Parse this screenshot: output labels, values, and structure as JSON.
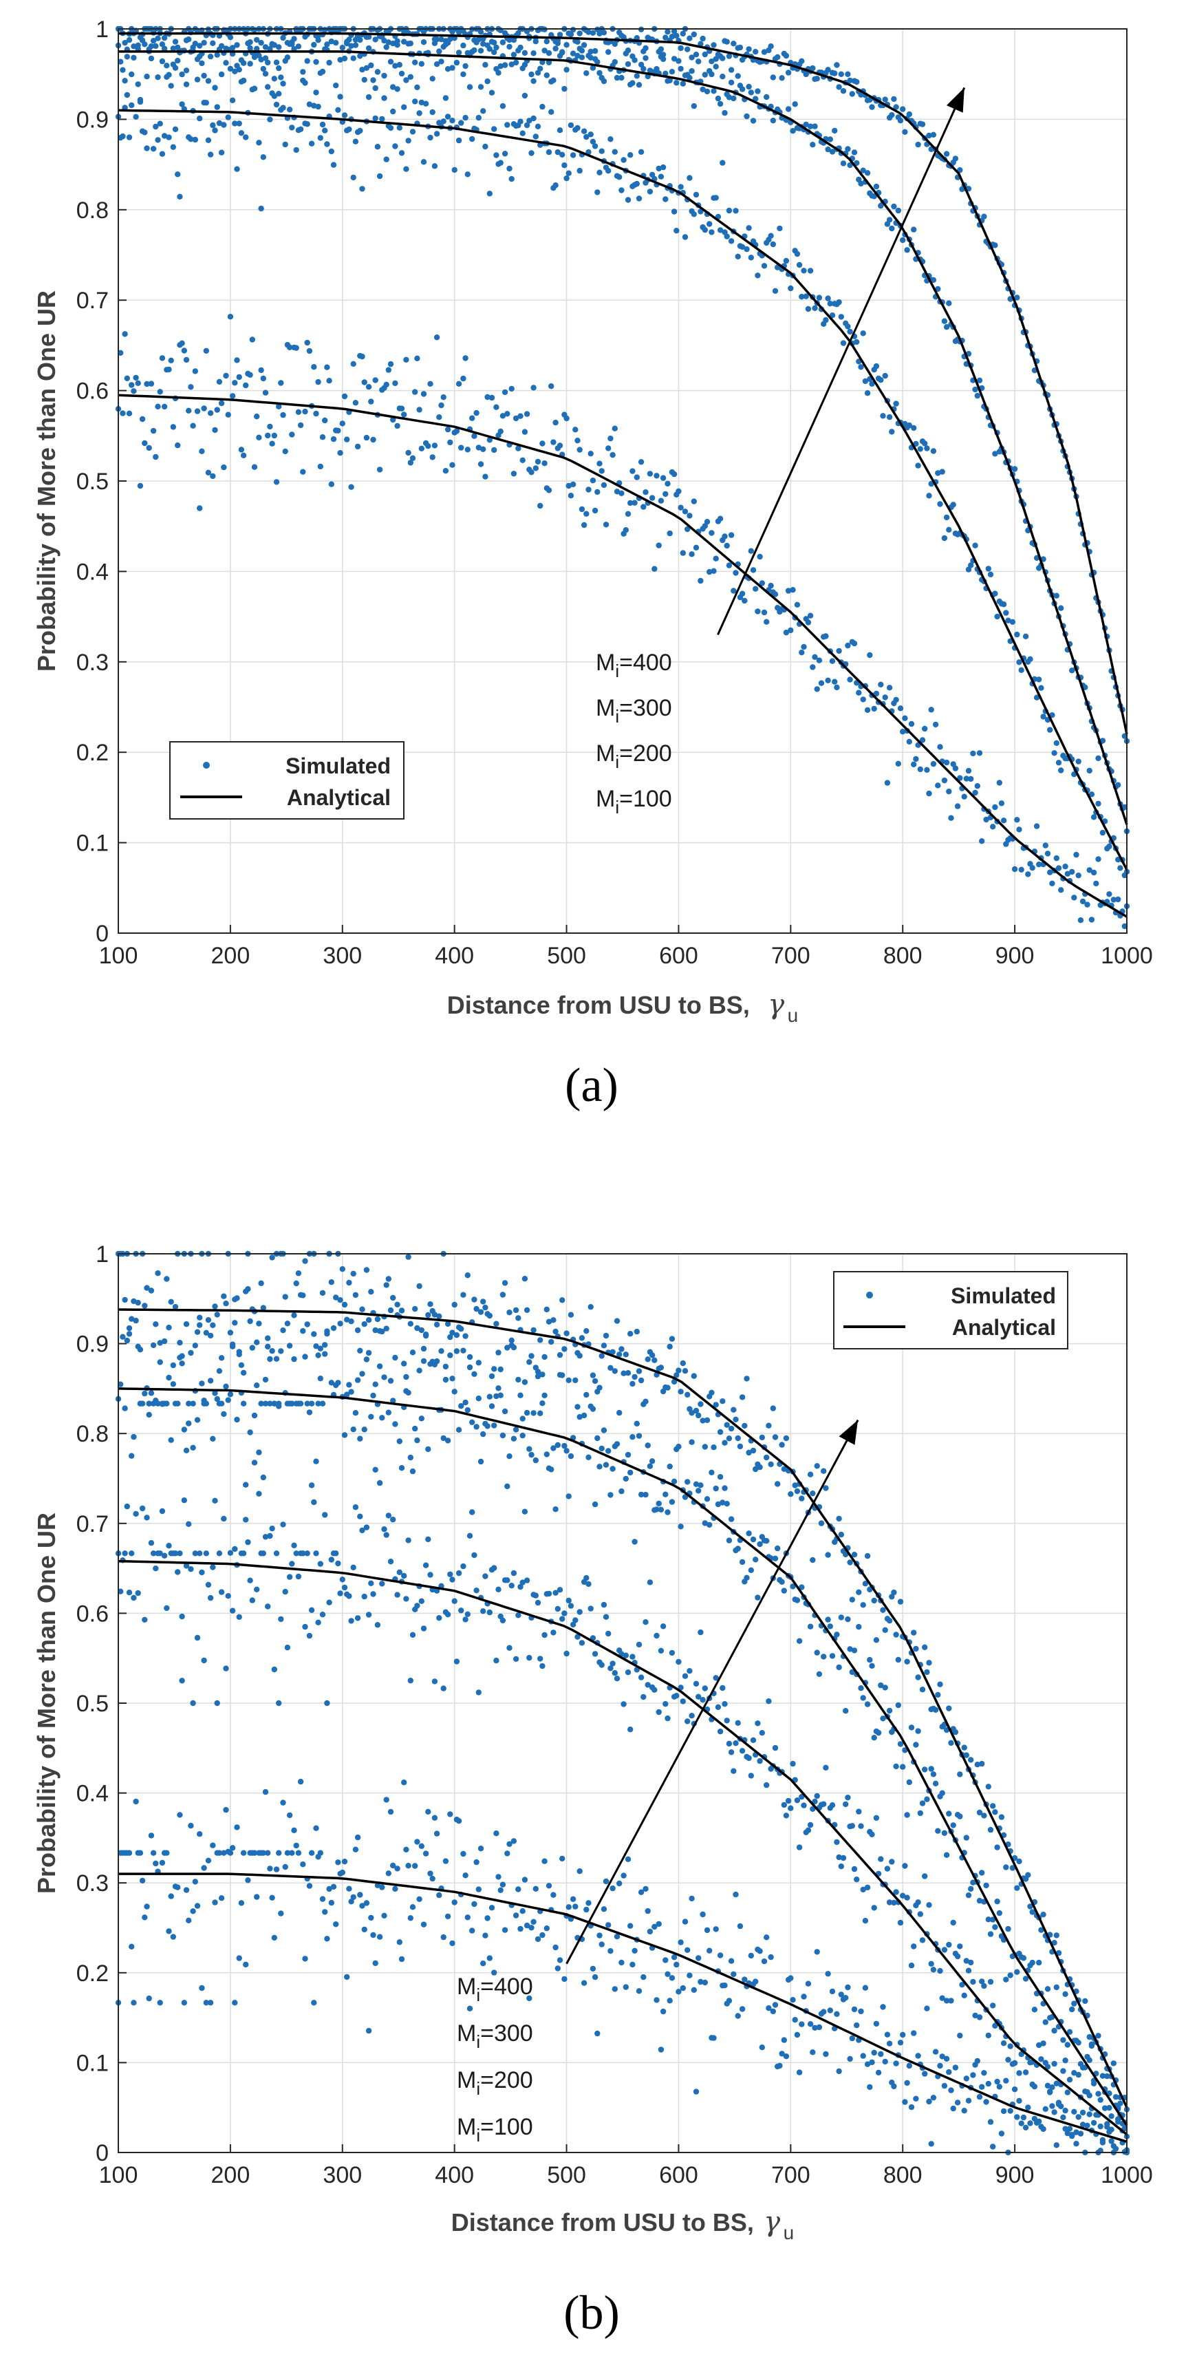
{
  "figure_captions": [
    "(a)",
    "(b)"
  ],
  "chart_data": [
    {
      "type": "scatter",
      "panel": "(a)",
      "xlabel": "Distance from USU to BS,",
      "xlabel_symbol": "γ",
      "xlabel_symbol_subscript": "u",
      "ylabel": "Probability of More than One UR",
      "xlim": [
        100,
        1000
      ],
      "ylim": [
        0,
        1
      ],
      "x_ticks": [
        "100",
        "200",
        "300",
        "400",
        "500",
        "600",
        "700",
        "800",
        "900",
        "1000"
      ],
      "y_ticks": [
        "0",
        "0.1",
        "0.2",
        "0.3",
        "0.4",
        "0.5",
        "0.6",
        "0.7",
        "0.8",
        "0.9",
        "1"
      ],
      "grid": true,
      "legend": {
        "position": "bottom-left",
        "entries": [
          "Simulated",
          "Analytical"
        ]
      },
      "annotation_labels": [
        "M",
        "M",
        "M",
        "M"
      ],
      "annotation_subscripts": [
        "i",
        "i",
        "i",
        "i"
      ],
      "annotation_values": [
        "=400",
        "=300",
        "=200",
        "=100"
      ],
      "arrow": {
        "from": [
          635,
          0.33
        ],
        "to": [
          855,
          0.935
        ]
      },
      "series": [
        {
          "name": "M_i=100",
          "analytical": {
            "x": [
              100,
              200,
              300,
              400,
              500,
              600,
              700,
              800,
              900,
              950,
              1000
            ],
            "y": [
              0.595,
              0.59,
              0.58,
              0.56,
              0.525,
              0.46,
              0.355,
              0.23,
              0.105,
              0.055,
              0.018
            ]
          },
          "sim_noise": 0.045
        },
        {
          "name": "M_i=200",
          "analytical": {
            "x": [
              100,
              200,
              300,
              400,
              500,
              600,
              700,
              750,
              800,
              850,
              900,
              950,
              1000
            ],
            "y": [
              0.91,
              0.908,
              0.9,
              0.89,
              0.87,
              0.82,
              0.73,
              0.66,
              0.56,
              0.45,
              0.32,
              0.19,
              0.07
            ]
          },
          "sim_noise": 0.03
        },
        {
          "name": "M_i=300",
          "analytical": {
            "x": [
              100,
              200,
              300,
              400,
              500,
              600,
              650,
              700,
              750,
              800,
              850,
              900,
              950,
              1000
            ],
            "y": [
              0.975,
              0.975,
              0.975,
              0.97,
              0.965,
              0.945,
              0.93,
              0.9,
              0.86,
              0.78,
              0.66,
              0.5,
              0.31,
              0.12
            ]
          },
          "sim_noise": 0.015
        },
        {
          "name": "M_i=400",
          "analytical": {
            "x": [
              100,
              300,
              500,
              600,
              700,
              750,
              800,
              850,
              900,
              950,
              1000
            ],
            "y": [
              0.995,
              0.995,
              0.99,
              0.985,
              0.96,
              0.94,
              0.905,
              0.84,
              0.7,
              0.51,
              0.22
            ]
          },
          "sim_noise": 0.008
        }
      ]
    },
    {
      "type": "scatter",
      "panel": "(b)",
      "xlabel": "Distance from USU to BS,",
      "xlabel_symbol": "γ",
      "xlabel_symbol_subscript": "u",
      "ylabel": "Probability of More than One UR",
      "xlim": [
        100,
        1000
      ],
      "ylim": [
        0,
        1
      ],
      "x_ticks": [
        "100",
        "200",
        "300",
        "400",
        "500",
        "600",
        "700",
        "800",
        "900",
        "1000"
      ],
      "y_ticks": [
        "0",
        "0.1",
        "0.2",
        "0.3",
        "0.4",
        "0.5",
        "0.6",
        "0.7",
        "0.8",
        "0.9",
        "1"
      ],
      "grid": true,
      "legend": {
        "position": "top-right",
        "entries": [
          "Simulated",
          "Analytical"
        ]
      },
      "annotation_labels": [
        "M",
        "M",
        "M",
        "M"
      ],
      "annotation_subscripts": [
        "i",
        "i",
        "i",
        "i"
      ],
      "annotation_values": [
        "=400",
        "=300",
        "=200",
        "=100"
      ],
      "arrow": {
        "from": [
          500,
          0.21
        ],
        "to": [
          760,
          0.815
        ]
      },
      "series": [
        {
          "name": "M_i=100",
          "analytical": {
            "x": [
              100,
              200,
              300,
              400,
              500,
              600,
              700,
              800,
              900,
              1000
            ],
            "y": [
              0.31,
              0.31,
              0.305,
              0.29,
              0.265,
              0.22,
              0.165,
              0.105,
              0.05,
              0.012
            ]
          },
          "sim_noise": 0.06
        },
        {
          "name": "M_i=200",
          "analytical": {
            "x": [
              100,
              200,
              300,
              400,
              500,
              600,
              700,
              800,
              900,
              1000
            ],
            "y": [
              0.658,
              0.655,
              0.645,
              0.625,
              0.585,
              0.515,
              0.415,
              0.275,
              0.12,
              0.02
            ]
          },
          "sim_noise": 0.05
        },
        {
          "name": "M_i=300",
          "analytical": {
            "x": [
              100,
              200,
              300,
              400,
              500,
              600,
              700,
              800,
              900,
              1000
            ],
            "y": [
              0.85,
              0.848,
              0.84,
              0.825,
              0.795,
              0.74,
              0.64,
              0.46,
              0.22,
              0.03
            ]
          },
          "sim_noise": 0.045
        },
        {
          "name": "M_i=400",
          "analytical": {
            "x": [
              100,
              200,
              300,
              400,
              500,
              600,
              700,
              800,
              900,
              1000
            ],
            "y": [
              0.938,
              0.937,
              0.935,
              0.925,
              0.905,
              0.86,
              0.76,
              0.58,
              0.32,
              0.05
            ]
          },
          "sim_noise": 0.035
        }
      ]
    }
  ]
}
